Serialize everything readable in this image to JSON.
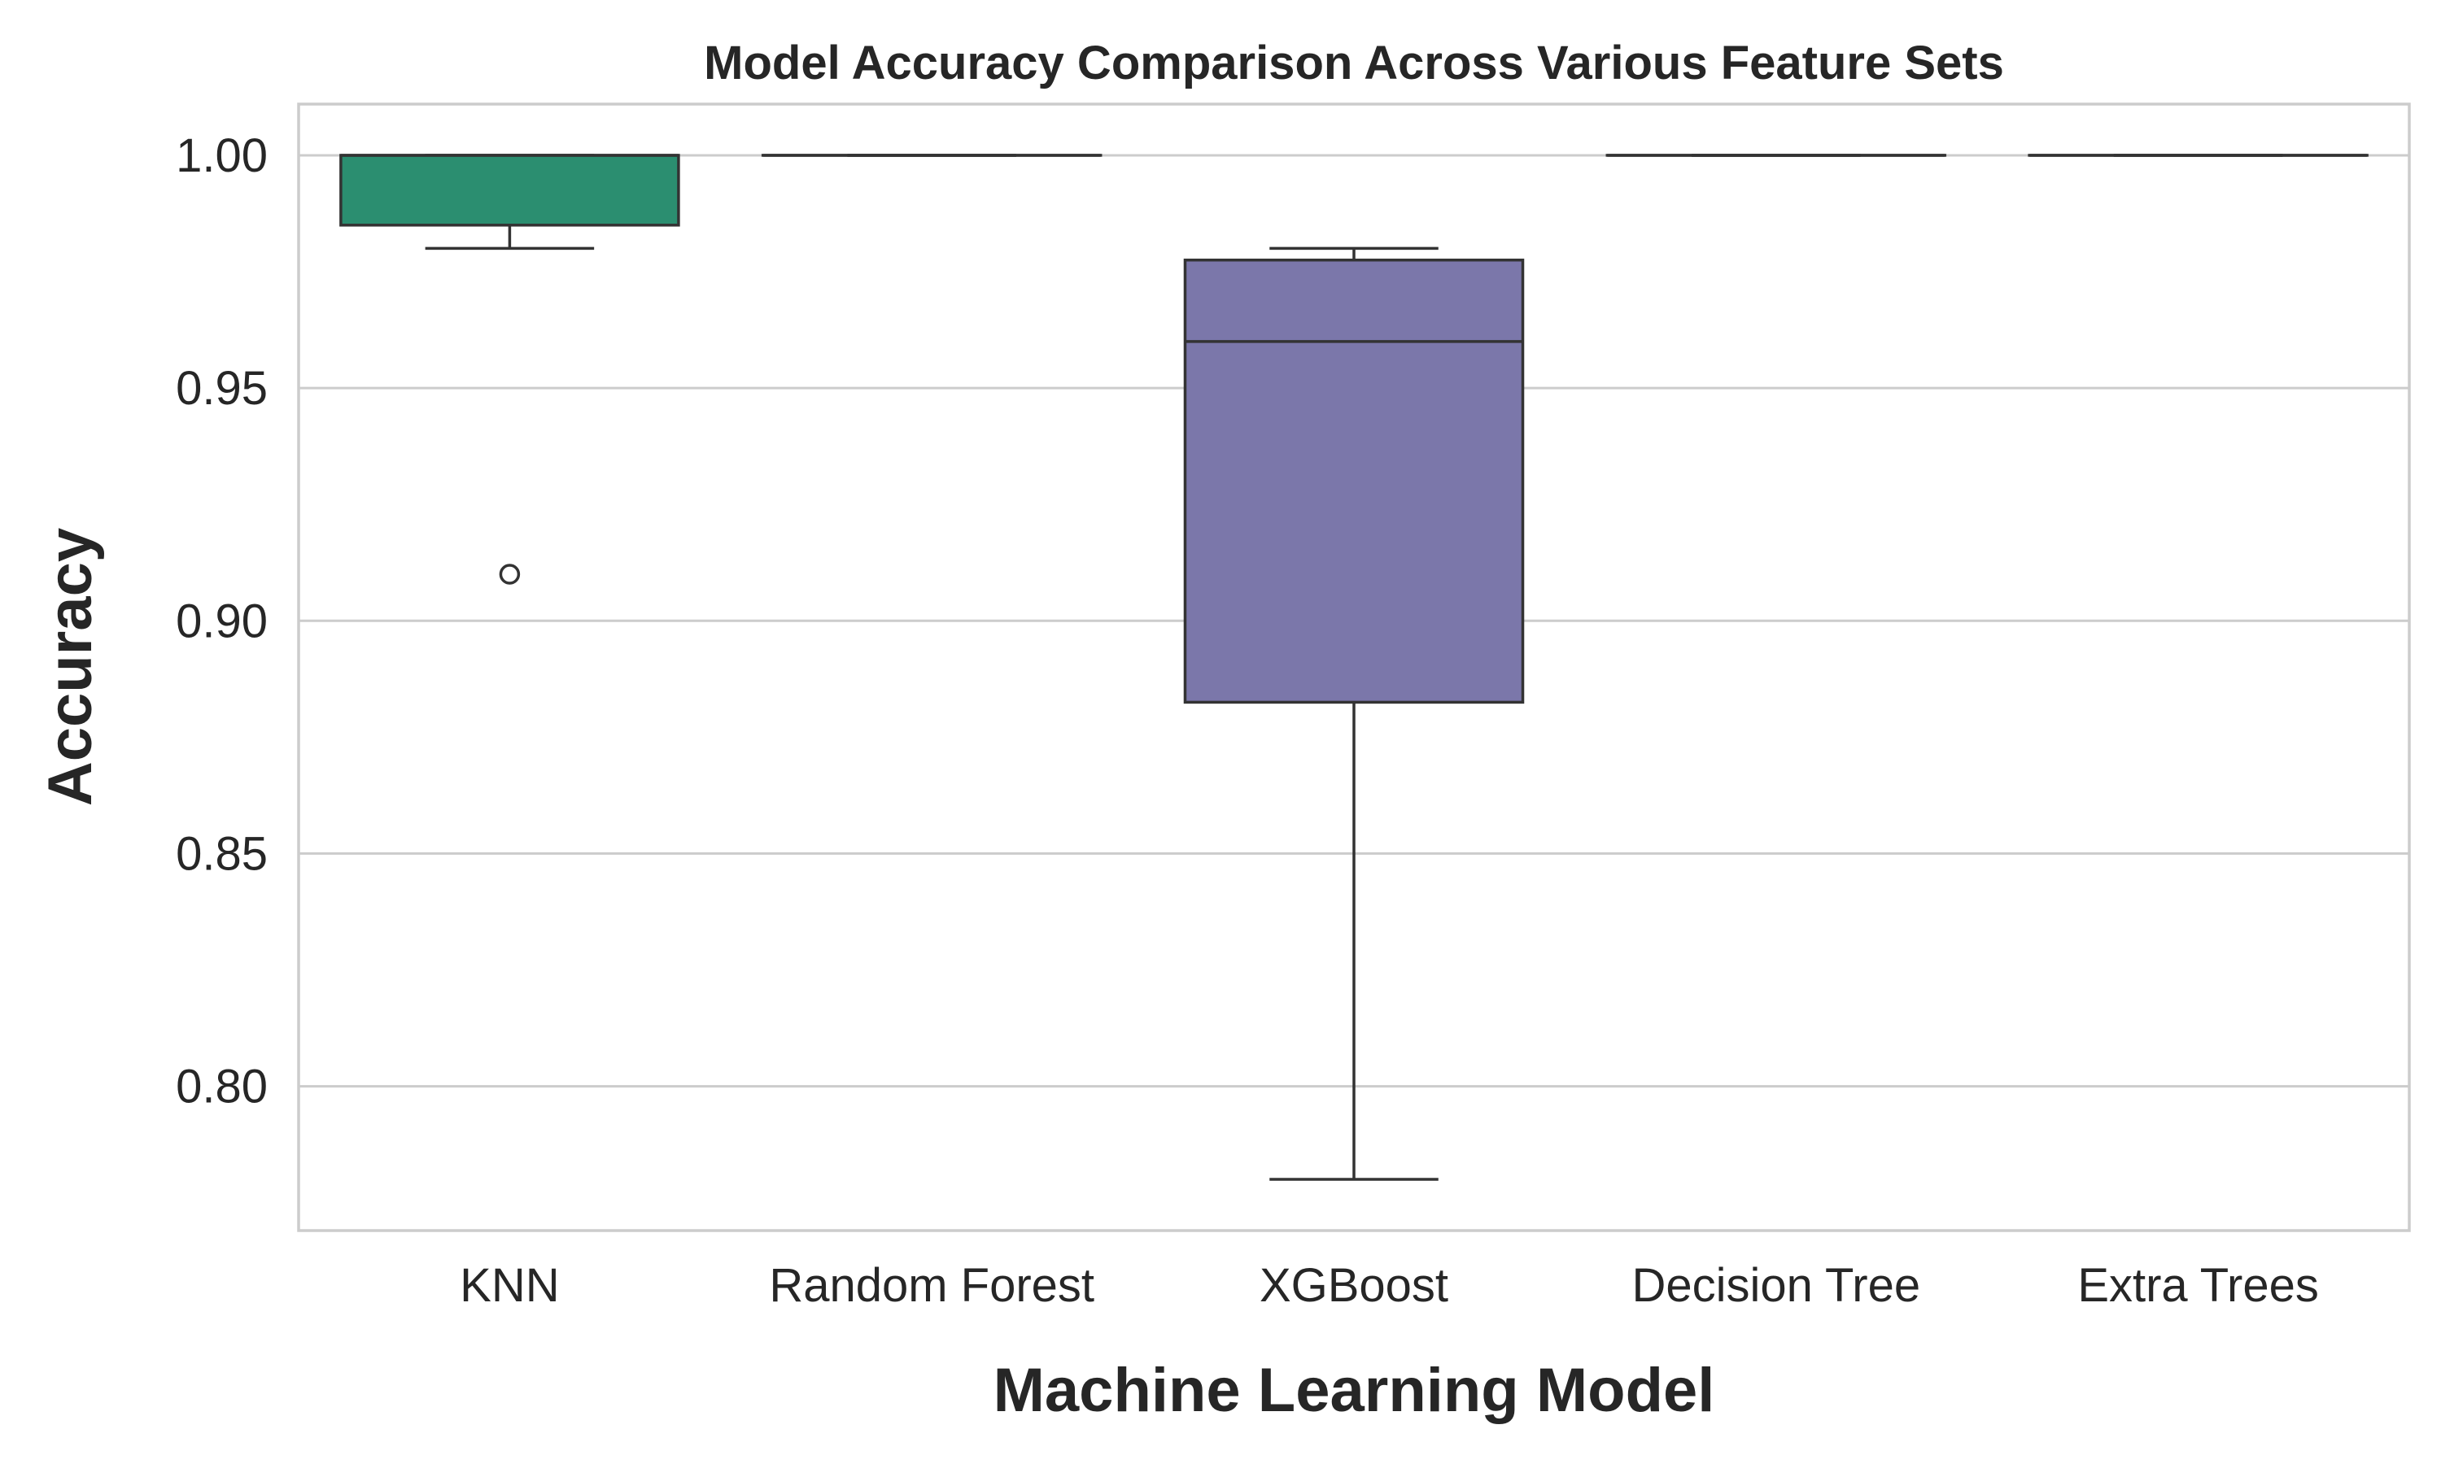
{
  "chart_data": {
    "type": "box",
    "title": "Model Accuracy Comparison Across Various Feature Sets",
    "xlabel": "Machine Learning Model",
    "ylabel": "Accuracy",
    "ylim": [
      0.769,
      1.011
    ],
    "yticks": [
      0.8,
      0.85,
      0.9,
      0.95,
      1.0
    ],
    "ytick_labels": [
      "0.80",
      "0.85",
      "0.90",
      "0.95",
      "1.00"
    ],
    "grid": true,
    "categories": [
      "KNN",
      "Random Forest",
      "XGBoost",
      "Decision Tree",
      "Extra Trees"
    ],
    "boxes": [
      {
        "name": "KNN",
        "whislo": 0.98,
        "q1": 0.985,
        "med": 1.0,
        "q3": 1.0,
        "whishi": 1.0,
        "fliers": [
          0.91
        ],
        "color": "#2b8e70"
      },
      {
        "name": "Random Forest",
        "whislo": 1.0,
        "q1": 1.0,
        "med": 1.0,
        "q3": 1.0,
        "whishi": 1.0,
        "fliers": [],
        "color": "#d46b2a"
      },
      {
        "name": "XGBoost",
        "whislo": 0.78,
        "q1": 0.8825,
        "med": 0.96,
        "q3": 0.9775,
        "whishi": 0.98,
        "fliers": [],
        "color": "#7b77aa"
      },
      {
        "name": "Decision Tree",
        "whislo": 1.0,
        "q1": 1.0,
        "med": 1.0,
        "q3": 1.0,
        "whishi": 1.0,
        "fliers": [],
        "color": "#d8478e"
      },
      {
        "name": "Extra Trees",
        "whislo": 1.0,
        "q1": 1.0,
        "med": 1.0,
        "q3": 1.0,
        "whishi": 1.0,
        "fliers": [],
        "color": "#69a12f"
      }
    ]
  }
}
